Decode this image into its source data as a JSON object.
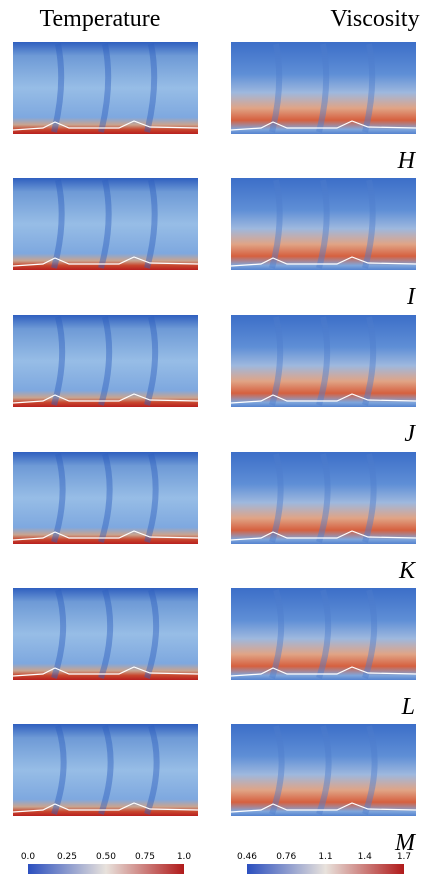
{
  "header": {
    "left": "Temperature",
    "right": "Viscosity"
  },
  "rows": [
    {
      "label": "H"
    },
    {
      "label": "I"
    },
    {
      "label": "J"
    },
    {
      "label": "K"
    },
    {
      "label": "L"
    },
    {
      "label": "M"
    }
  ],
  "colorbars": [
    {
      "ticks": [
        "0.0",
        "0.25",
        "0.50",
        "0.75",
        "1.0"
      ]
    },
    {
      "ticks": [
        "0.46",
        "0.76",
        "1.1",
        "1.4",
        "1.7"
      ]
    }
  ]
}
